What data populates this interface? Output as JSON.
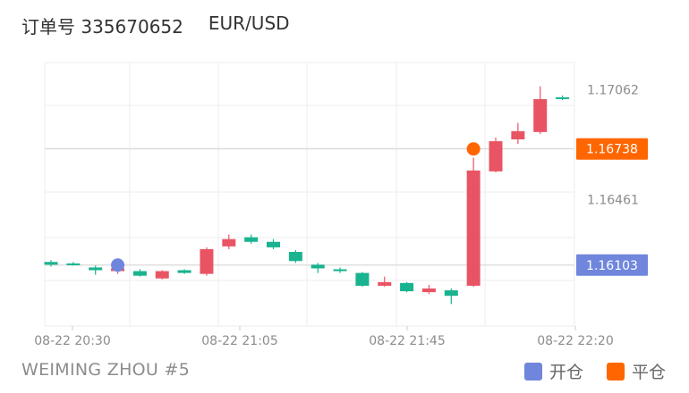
{
  "header": {
    "order_label": "订单号 335670652",
    "symbol": "EUR/USD"
  },
  "footer": {
    "account": "WEIMING ZHOU #5"
  },
  "legend": {
    "items": [
      {
        "label": "开仓",
        "color": "#6f86dc"
      },
      {
        "label": "平仓",
        "color": "#ff6600"
      }
    ]
  },
  "colors": {
    "up": "#19b38f",
    "down": "#e95464",
    "grid": "#eeeeee",
    "open_marker": "#6f86dc",
    "close_marker": "#ff6600"
  },
  "chart_data": {
    "type": "candlestick",
    "x_tick_labels": [
      "08-22 20:30",
      "08-22 21:05",
      "08-22 21:45",
      "08-22 22:20"
    ],
    "y_tick_labels": [
      "1.17062",
      "1.16461"
    ],
    "ylim": [
      1.1577,
      1.1721
    ],
    "grid": true,
    "price_lines": [
      {
        "name": "open",
        "value": 1.16103,
        "label": "1.16103",
        "color": "#6f86dc"
      },
      {
        "name": "close",
        "value": 1.16738,
        "label": "1.16738",
        "color": "#ff6600"
      }
    ],
    "candles": [
      {
        "index": 0,
        "open": 1.16105,
        "close": 1.1612,
        "high": 1.1613,
        "low": 1.16095
      },
      {
        "index": 1,
        "open": 1.1611,
        "close": 1.16112,
        "high": 1.1612,
        "low": 1.161
      },
      {
        "index": 2,
        "open": 1.16075,
        "close": 1.1609,
        "high": 1.161,
        "low": 1.1605
      },
      {
        "index": 3,
        "open": 1.16085,
        "close": 1.1607,
        "high": 1.16095,
        "low": 1.16055
      },
      {
        "index": 4,
        "open": 1.16045,
        "close": 1.1607,
        "high": 1.1608,
        "low": 1.1604
      },
      {
        "index": 5,
        "open": 1.1607,
        "close": 1.1603,
        "high": 1.16075,
        "low": 1.16025
      },
      {
        "index": 6,
        "open": 1.1606,
        "close": 1.16075,
        "high": 1.1608,
        "low": 1.16055
      },
      {
        "index": 7,
        "open": 1.1619,
        "close": 1.16055,
        "high": 1.162,
        "low": 1.16045
      },
      {
        "index": 8,
        "open": 1.16245,
        "close": 1.16205,
        "high": 1.1627,
        "low": 1.1619
      },
      {
        "index": 9,
        "open": 1.1623,
        "close": 1.16255,
        "high": 1.1627,
        "low": 1.1622
      },
      {
        "index": 10,
        "open": 1.162,
        "close": 1.1623,
        "high": 1.16245,
        "low": 1.1619
      },
      {
        "index": 11,
        "open": 1.16125,
        "close": 1.16175,
        "high": 1.16185,
        "low": 1.16115
      },
      {
        "index": 12,
        "open": 1.16085,
        "close": 1.16105,
        "high": 1.16115,
        "low": 1.1606
      },
      {
        "index": 13,
        "open": 1.1607,
        "close": 1.1608,
        "high": 1.1609,
        "low": 1.1606
      },
      {
        "index": 14,
        "open": 1.1599,
        "close": 1.1606,
        "high": 1.16065,
        "low": 1.15985
      },
      {
        "index": 15,
        "open": 1.1601,
        "close": 1.1599,
        "high": 1.1604,
        "low": 1.15985
      },
      {
        "index": 16,
        "open": 1.1596,
        "close": 1.16005,
        "high": 1.1601,
        "low": 1.15955
      },
      {
        "index": 17,
        "open": 1.15975,
        "close": 1.15955,
        "high": 1.15995,
        "low": 1.15945
      },
      {
        "index": 18,
        "open": 1.15935,
        "close": 1.15965,
        "high": 1.15975,
        "low": 1.1589
      },
      {
        "index": 19,
        "open": 1.1662,
        "close": 1.1599,
        "high": 1.1669,
        "low": 1.15985
      },
      {
        "index": 20,
        "open": 1.1678,
        "close": 1.16615,
        "high": 1.168,
        "low": 1.1661
      },
      {
        "index": 21,
        "open": 1.16835,
        "close": 1.1679,
        "high": 1.1688,
        "low": 1.16765
      },
      {
        "index": 22,
        "open": 1.1701,
        "close": 1.1683,
        "high": 1.1708,
        "low": 1.1682
      },
      {
        "index": 23,
        "open": 1.17012,
        "close": 1.1702,
        "high": 1.1703,
        "low": 1.17005
      }
    ],
    "markers": [
      {
        "type": "open",
        "candle_index": 3,
        "price": 1.16103
      },
      {
        "type": "close",
        "candle_index": 19,
        "price": 1.16738
      }
    ]
  }
}
